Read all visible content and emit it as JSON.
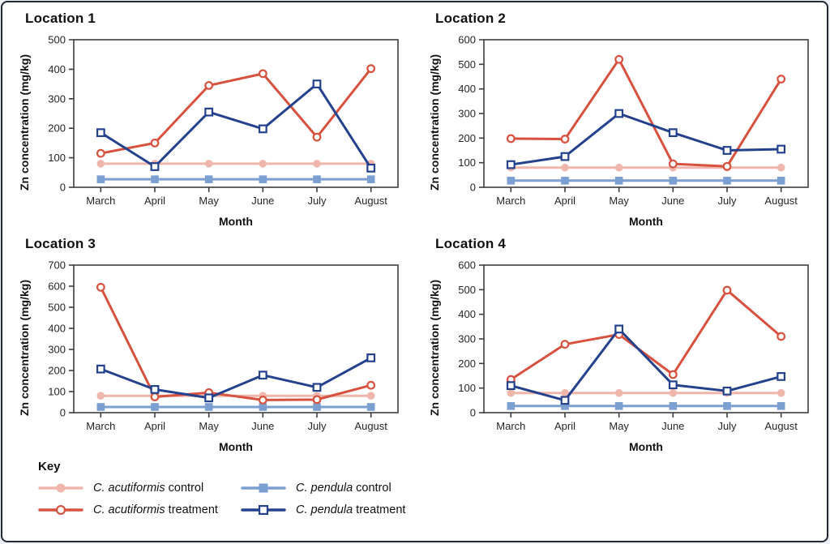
{
  "figure": {
    "border_color": "#222836",
    "background": "#ffffff"
  },
  "axes_font_color": "#262626",
  "frame_color": "#3d3d3d",
  "series_meta": {
    "acutiformis_control": {
      "color": "#efb6ac",
      "marker": "circle-filled"
    },
    "acutiformis_treatment": {
      "color": "#d8503e",
      "marker": "circle-open"
    },
    "pendula_control": {
      "color": "#7a9fd0",
      "marker": "square-filled"
    },
    "pendula_treatment": {
      "color": "#24418e",
      "marker": "square-open"
    }
  },
  "chart_data": [
    {
      "type": "line",
      "title": "Location 1",
      "xlabel": "Month",
      "ylabel": "Zn concentration (mg/kg)",
      "categories": [
        "March",
        "April",
        "May",
        "June",
        "July",
        "August"
      ],
      "ylim": [
        0,
        500
      ],
      "ytick_step": 100,
      "grid": false,
      "series": [
        {
          "name": "C. acutiformis control",
          "key": "acutiformis_control",
          "values": [
            80,
            80,
            80,
            80,
            80,
            80
          ]
        },
        {
          "name": "C. pendula control",
          "key": "pendula_control",
          "values": [
            27,
            27,
            27,
            27,
            27,
            27
          ]
        },
        {
          "name": "C. acutiformis treatment",
          "key": "acutiformis_treatment",
          "values": [
            115,
            150,
            345,
            385,
            170,
            402
          ]
        },
        {
          "name": "C. pendula treatment",
          "key": "pendula_treatment",
          "values": [
            185,
            70,
            255,
            198,
            350,
            65
          ]
        }
      ]
    },
    {
      "type": "line",
      "title": "Location 2",
      "xlabel": "Month",
      "ylabel": "Zn concentration (mg/kg)",
      "categories": [
        "March",
        "April",
        "May",
        "June",
        "July",
        "August"
      ],
      "ylim": [
        0,
        600
      ],
      "ytick_step": 100,
      "grid": false,
      "series": [
        {
          "name": "C. acutiformis control",
          "key": "acutiformis_control",
          "values": [
            80,
            80,
            80,
            80,
            80,
            80
          ]
        },
        {
          "name": "C. pendula control",
          "key": "pendula_control",
          "values": [
            27,
            27,
            27,
            27,
            27,
            27
          ]
        },
        {
          "name": "C. acutiformis treatment",
          "key": "acutiformis_treatment",
          "values": [
            198,
            196,
            520,
            95,
            85,
            440
          ]
        },
        {
          "name": "C. pendula treatment",
          "key": "pendula_treatment",
          "values": [
            92,
            125,
            300,
            222,
            150,
            155
          ]
        }
      ]
    },
    {
      "type": "line",
      "title": "Location 3",
      "xlabel": "Month",
      "ylabel": "Zn concentration (mg/kg)",
      "categories": [
        "March",
        "April",
        "May",
        "June",
        "July",
        "August"
      ],
      "ylim": [
        0,
        700
      ],
      "ytick_step": 100,
      "grid": false,
      "series": [
        {
          "name": "C. acutiformis control",
          "key": "acutiformis_control",
          "values": [
            80,
            80,
            80,
            80,
            80,
            80
          ]
        },
        {
          "name": "C. pendula control",
          "key": "pendula_control",
          "values": [
            27,
            27,
            27,
            27,
            27,
            27
          ]
        },
        {
          "name": "C. acutiformis treatment",
          "key": "acutiformis_treatment",
          "values": [
            595,
            75,
            95,
            60,
            62,
            130
          ]
        },
        {
          "name": "C. pendula treatment",
          "key": "pendula_treatment",
          "values": [
            207,
            110,
            70,
            178,
            120,
            260
          ]
        }
      ]
    },
    {
      "type": "line",
      "title": "Location 4",
      "xlabel": "Month",
      "ylabel": "Zn concentration (mg/kg)",
      "categories": [
        "March",
        "April",
        "May",
        "June",
        "July",
        "August"
      ],
      "ylim": [
        0,
        600
      ],
      "ytick_step": 100,
      "grid": false,
      "series": [
        {
          "name": "C. acutiformis control",
          "key": "acutiformis_control",
          "values": [
            80,
            80,
            80,
            80,
            80,
            80
          ]
        },
        {
          "name": "C. pendula control",
          "key": "pendula_control",
          "values": [
            27,
            27,
            27,
            27,
            27,
            27
          ]
        },
        {
          "name": "C. acutiformis treatment",
          "key": "acutiformis_treatment",
          "values": [
            135,
            278,
            318,
            155,
            498,
            310
          ]
        },
        {
          "name": "C. pendula treatment",
          "key": "pendula_treatment",
          "values": [
            110,
            50,
            340,
            113,
            88,
            147
          ]
        }
      ]
    }
  ],
  "legend": {
    "key_label": "Key",
    "items": [
      {
        "species": "C. acutiformis",
        "variant": "control",
        "series_key": "acutiformis_control"
      },
      {
        "species": "C. acutiformis",
        "variant": "treatment",
        "series_key": "acutiformis_treatment"
      },
      {
        "species": "C. pendula",
        "variant": "control",
        "series_key": "pendula_control"
      },
      {
        "species": "C. pendula",
        "variant": "treatment",
        "series_key": "pendula_treatment"
      }
    ]
  }
}
